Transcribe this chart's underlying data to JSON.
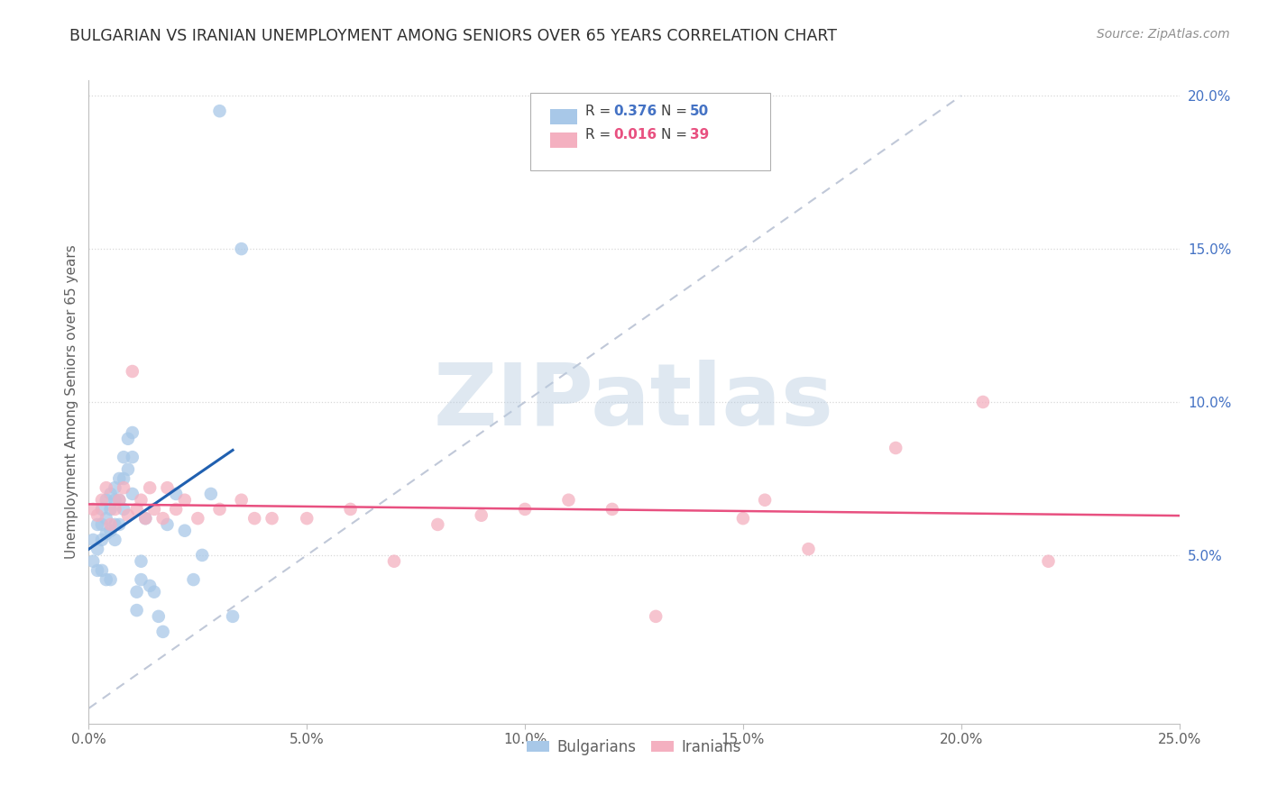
{
  "title": "BULGARIAN VS IRANIAN UNEMPLOYMENT AMONG SENIORS OVER 65 YEARS CORRELATION CHART",
  "source": "Source: ZipAtlas.com",
  "ylabel": "Unemployment Among Seniors over 65 years",
  "xlim": [
    0.0,
    0.25
  ],
  "ylim": [
    -0.005,
    0.205
  ],
  "xticks": [
    0.0,
    0.05,
    0.1,
    0.15,
    0.2,
    0.25
  ],
  "yticks_right": [
    0.05,
    0.1,
    0.15,
    0.2
  ],
  "watermark": "ZIPatlas",
  "blue_R": "0.376",
  "blue_N": "50",
  "pink_R": "0.016",
  "pink_N": "39",
  "blue_color": "#a8c8e8",
  "pink_color": "#f4b0c0",
  "blue_line_color": "#2060b0",
  "pink_line_color": "#e85080",
  "diagonal_color": "#c0c8d8",
  "background_color": "#ffffff",
  "grid_color": "#d8d8d8",
  "title_color": "#303030",
  "source_color": "#909090",
  "watermark_color": "#b8cce0",
  "tick_color_blue": "#4472c4",
  "tick_color_gray": "#606060",
  "bulgarian_x": [
    0.001,
    0.001,
    0.002,
    0.002,
    0.002,
    0.003,
    0.003,
    0.003,
    0.003,
    0.004,
    0.004,
    0.004,
    0.004,
    0.005,
    0.005,
    0.005,
    0.005,
    0.006,
    0.006,
    0.006,
    0.006,
    0.007,
    0.007,
    0.007,
    0.008,
    0.008,
    0.008,
    0.009,
    0.009,
    0.01,
    0.01,
    0.01,
    0.011,
    0.011,
    0.012,
    0.012,
    0.013,
    0.014,
    0.015,
    0.016,
    0.017,
    0.018,
    0.02,
    0.022,
    0.024,
    0.026,
    0.028,
    0.03,
    0.033,
    0.035
  ],
  "bulgarian_y": [
    0.055,
    0.048,
    0.06,
    0.052,
    0.045,
    0.065,
    0.06,
    0.055,
    0.045,
    0.068,
    0.062,
    0.057,
    0.042,
    0.07,
    0.065,
    0.058,
    0.042,
    0.072,
    0.068,
    0.06,
    0.055,
    0.075,
    0.068,
    0.06,
    0.082,
    0.075,
    0.065,
    0.088,
    0.078,
    0.09,
    0.082,
    0.07,
    0.038,
    0.032,
    0.048,
    0.042,
    0.062,
    0.04,
    0.038,
    0.03,
    0.025,
    0.06,
    0.07,
    0.058,
    0.042,
    0.05,
    0.07,
    0.195,
    0.03,
    0.15
  ],
  "iranian_x": [
    0.001,
    0.002,
    0.003,
    0.004,
    0.005,
    0.006,
    0.007,
    0.008,
    0.009,
    0.01,
    0.011,
    0.012,
    0.013,
    0.014,
    0.015,
    0.017,
    0.018,
    0.02,
    0.022,
    0.025,
    0.03,
    0.035,
    0.038,
    0.042,
    0.05,
    0.06,
    0.07,
    0.08,
    0.09,
    0.1,
    0.11,
    0.12,
    0.13,
    0.15,
    0.155,
    0.165,
    0.185,
    0.205,
    0.22
  ],
  "iranian_y": [
    0.065,
    0.063,
    0.068,
    0.072,
    0.06,
    0.065,
    0.068,
    0.072,
    0.063,
    0.11,
    0.065,
    0.068,
    0.062,
    0.072,
    0.065,
    0.062,
    0.072,
    0.065,
    0.068,
    0.062,
    0.065,
    0.068,
    0.062,
    0.062,
    0.062,
    0.065,
    0.048,
    0.06,
    0.063,
    0.065,
    0.068,
    0.065,
    0.03,
    0.062,
    0.068,
    0.052,
    0.085,
    0.1,
    0.048
  ]
}
